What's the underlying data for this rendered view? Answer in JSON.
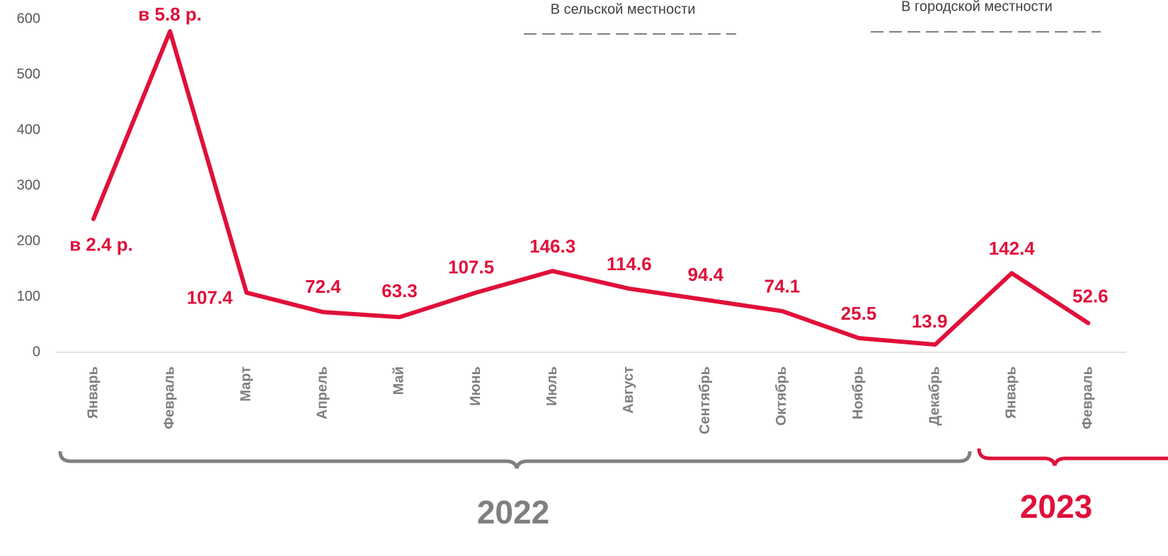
{
  "chart_data": {
    "type": "line",
    "categories": [
      "Январь",
      "Февраль",
      "Март",
      "Апрель",
      "Май",
      "Июнь",
      "Июль",
      "Август",
      "Сентябрь",
      "Октябрь",
      "Ноябрь",
      "Декабрь",
      "Январь",
      "Февраль"
    ],
    "values": [
      240,
      578,
      107.4,
      72.4,
      63.3,
      107.5,
      146.3,
      114.6,
      94.4,
      74.1,
      25.5,
      13.9,
      142.4,
      52.6
    ],
    "color": "#e0103a",
    "annotations": [
      "в 2.4 р.",
      "в 5.8 р."
    ],
    "legend": [
      "В сельской местности",
      "В городской местности"
    ],
    "groups": [
      "2022",
      "2023"
    ],
    "ylim": [
      0,
      600
    ],
    "yticks": [
      0,
      100,
      200,
      300,
      400,
      500,
      600
    ],
    "grid": false
  }
}
